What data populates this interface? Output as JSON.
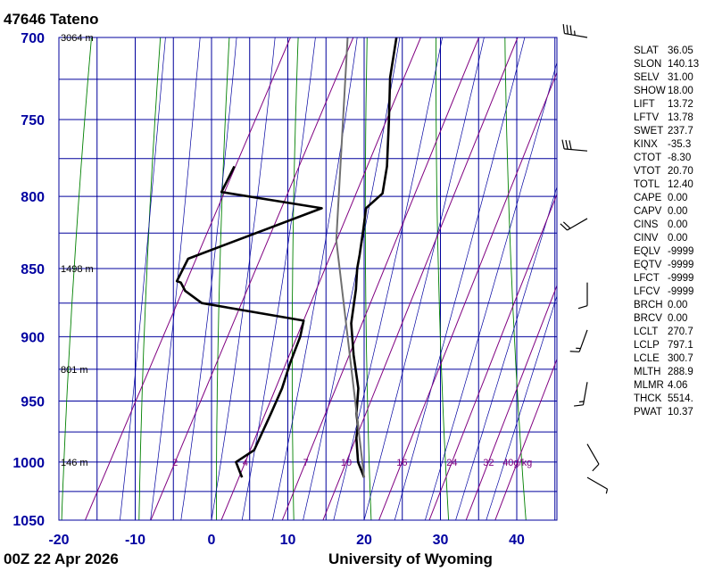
{
  "station_title": "47646  Tateno",
  "footer": {
    "time": "00Z 22 Apr 2026",
    "source": "University of Wyoming"
  },
  "colors": {
    "grid": "#00009c",
    "dry_adiabat": "#008000",
    "moist_adiabat": "#0000a0",
    "mixing_ratio": "#800080",
    "sounding": "#000000",
    "parcel": "#707070"
  },
  "chart_data": {
    "type": "line",
    "title": "47646  Tateno",
    "xlim": [
      -20,
      45
    ],
    "ylim": [
      1050,
      700
    ],
    "y_scale": "log",
    "pressure_ticks": [
      700,
      750,
      800,
      850,
      900,
      950,
      1000,
      1050
    ],
    "pressure_tick_labels": [
      "700",
      "750",
      "800",
      "850",
      "900",
      "950",
      "1000",
      "1050"
    ],
    "temperature_ticks": [
      -20,
      -10,
      0,
      10,
      20,
      30,
      40
    ],
    "temperature_tick_labels": [
      "-20",
      "-10",
      "0",
      "10",
      "20",
      "30",
      "40"
    ],
    "height_labels": [
      {
        "p": 700,
        "text": "3064 m"
      },
      {
        "p": 850,
        "text": "1498 m"
      },
      {
        "p": 925,
        "text": "801 m"
      },
      {
        "p": 1000,
        "text": "146 m"
      }
    ],
    "mixing_ratio_labels": [
      {
        "w": 2,
        "text": "2"
      },
      {
        "w": 4,
        "text": "4"
      },
      {
        "w": 7,
        "text": "7"
      },
      {
        "w": 10,
        "text": "10"
      },
      {
        "w": 16,
        "text": "16"
      },
      {
        "w": 24,
        "text": "24"
      },
      {
        "w": 32,
        "text": "32"
      },
      {
        "w": 40,
        "text": "40g/kg"
      }
    ],
    "series": [
      {
        "role": "temperature",
        "points": [
          [
            17.2,
            1013
          ],
          [
            15.4,
            1000
          ],
          [
            13.6,
            980
          ],
          [
            13.0,
            970
          ],
          [
            12.0,
            960
          ],
          [
            10.6,
            940
          ],
          [
            7.8,
            914
          ],
          [
            5.4,
            890
          ],
          [
            3.8,
            865
          ],
          [
            2.6,
            850
          ],
          [
            2.0,
            840
          ],
          [
            0.8,
            822
          ],
          [
            -0.2,
            808
          ],
          [
            1.0,
            798
          ],
          [
            -0.2,
            780
          ],
          [
            -3.0,
            750
          ],
          [
            -5.6,
            724
          ],
          [
            -7.4,
            700
          ]
        ]
      },
      {
        "role": "dewpoint",
        "points": [
          [
            1.2,
            1013
          ],
          [
            -0.6,
            1000
          ],
          [
            1.0,
            990
          ],
          [
            0.8,
            960
          ],
          [
            0.6,
            940
          ],
          [
            0.0,
            920
          ],
          [
            -0.4,
            900
          ],
          [
            -1.0,
            888
          ],
          [
            -15.5,
            875
          ],
          [
            -18.5,
            866
          ],
          [
            -19.6,
            860
          ],
          [
            -20.2,
            859
          ],
          [
            -20.2,
            843
          ],
          [
            -6.0,
            808
          ],
          [
            -20.2,
            797
          ],
          [
            -20.2,
            780
          ]
        ]
      },
      {
        "role": "parcel",
        "points": [
          [
            17.2,
            1013
          ],
          [
            10.0,
            940
          ],
          [
            -2.0,
            830
          ],
          [
            -13.8,
            700
          ]
        ]
      }
    ]
  },
  "indices": [
    {
      "key": "SLAT",
      "value": "36.05"
    },
    {
      "key": "SLON",
      "value": "140.13"
    },
    {
      "key": "SELV",
      "value": "31.00"
    },
    {
      "key": "SHOW",
      "value": "18.00"
    },
    {
      "key": "LIFT",
      "value": "13.72"
    },
    {
      "key": "LFTV",
      "value": "13.78"
    },
    {
      "key": "SWET",
      "value": "237.7"
    },
    {
      "key": "KINX",
      "value": "-35.3"
    },
    {
      "key": "CTOT",
      "value": "-8.30"
    },
    {
      "key": "VTOT",
      "value": "20.70"
    },
    {
      "key": "TOTL",
      "value": "12.40"
    },
    {
      "key": "CAPE",
      "value": "0.00"
    },
    {
      "key": "CAPV",
      "value": "0.00"
    },
    {
      "key": "CINS",
      "value": "0.00"
    },
    {
      "key": "CINV",
      "value": "0.00"
    },
    {
      "key": "EQLV",
      "value": "-9999"
    },
    {
      "key": "EQTV",
      "value": "-9999"
    },
    {
      "key": "LFCT",
      "value": "-9999"
    },
    {
      "key": "LFCV",
      "value": "-9999"
    },
    {
      "key": "BRCH",
      "value": "0.00"
    },
    {
      "key": "BRCV",
      "value": "0.00"
    },
    {
      "key": "LCLT",
      "value": "270.7"
    },
    {
      "key": "LCLP",
      "value": "797.1"
    },
    {
      "key": "LCLE",
      "value": "300.7"
    },
    {
      "key": "MLTH",
      "value": "288.9"
    },
    {
      "key": "MLMR",
      "value": "4.06"
    },
    {
      "key": "THCK",
      "value": "5514."
    },
    {
      "key": "PWAT",
      "value": "10.37"
    }
  ],
  "winds": [
    {
      "p": 700,
      "dir": 280,
      "kt": 35
    },
    {
      "p": 770,
      "dir": 275,
      "kt": 30
    },
    {
      "p": 815,
      "dir": 240,
      "kt": 20
    },
    {
      "p": 860,
      "dir": 180,
      "kt": 10
    },
    {
      "p": 895,
      "dir": 200,
      "kt": 15
    },
    {
      "p": 935,
      "dir": 190,
      "kt": 15
    },
    {
      "p": 985,
      "dir": 150,
      "kt": 10
    },
    {
      "p": 1013,
      "dir": 120,
      "kt": 5
    }
  ]
}
